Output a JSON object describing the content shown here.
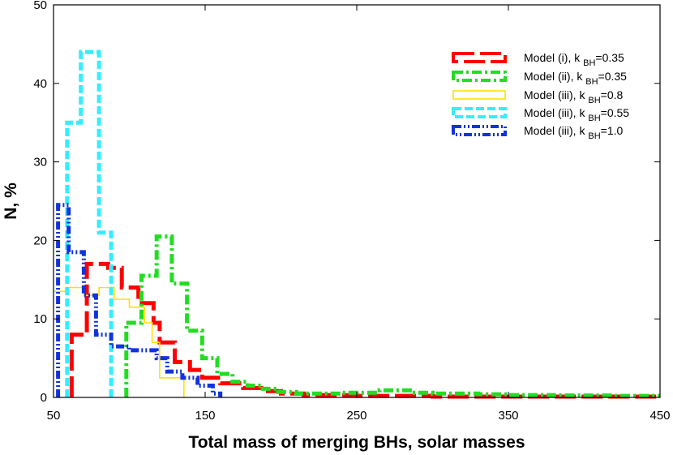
{
  "chart_data": {
    "type": "histogram-step",
    "xlabel": "Total mass of merging BHs, solar masses",
    "ylabel": "N, %",
    "xlim": [
      50,
      450
    ],
    "ylim": [
      0,
      50
    ],
    "xticks": [
      50,
      150,
      250,
      350,
      450
    ],
    "yticks": [
      0,
      10,
      20,
      30,
      40,
      50
    ],
    "grid": false,
    "legend_position": "top-right",
    "series": [
      {
        "name": "Model (i), k BH=0.35",
        "label_main": "Model (i), k ",
        "label_sub": "BH",
        "label_tail": "=0.35",
        "color": "#ff0000",
        "dash": "26,7",
        "width": 5,
        "points": [
          [
            62,
            0
          ],
          [
            62,
            8
          ],
          [
            72,
            8
          ],
          [
            72,
            17
          ],
          [
            86,
            17
          ],
          [
            86,
            16.5
          ],
          [
            95,
            16.5
          ],
          [
            95,
            14
          ],
          [
            106,
            14
          ],
          [
            106,
            12
          ],
          [
            116,
            12
          ],
          [
            116,
            9.5
          ],
          [
            120,
            9.5
          ],
          [
            120,
            7
          ],
          [
            130,
            7
          ],
          [
            130,
            4.5
          ],
          [
            140,
            4.5
          ],
          [
            140,
            3.5
          ],
          [
            148,
            3.5
          ],
          [
            148,
            2.5
          ],
          [
            160,
            2.5
          ],
          [
            160,
            1.8
          ],
          [
            175,
            1.8
          ],
          [
            175,
            1.2
          ],
          [
            190,
            1.2
          ],
          [
            190,
            0.8
          ],
          [
            200,
            0.8
          ],
          [
            200,
            0.5
          ],
          [
            215,
            0.5
          ],
          [
            215,
            0.3
          ],
          [
            250,
            0.3
          ],
          [
            250,
            0.2
          ],
          [
            300,
            0.2
          ],
          [
            300,
            0.1
          ],
          [
            450,
            0.1
          ]
        ]
      },
      {
        "name": "Model (ii), k BH=0.35",
        "label_main": "Model (ii), k ",
        "label_sub": "BH",
        "label_tail": "=0.35",
        "color": "#22dd22",
        "dash": "12,4,3,4",
        "width": 5,
        "points": [
          [
            98,
            0
          ],
          [
            98,
            9.5
          ],
          [
            108,
            9.5
          ],
          [
            108,
            15.5
          ],
          [
            118,
            15.5
          ],
          [
            118,
            20.5
          ],
          [
            128,
            20.5
          ],
          [
            128,
            14.5
          ],
          [
            138,
            14.5
          ],
          [
            138,
            8.5
          ],
          [
            148,
            8.5
          ],
          [
            148,
            5
          ],
          [
            158,
            5
          ],
          [
            158,
            3
          ],
          [
            168,
            3
          ],
          [
            168,
            2
          ],
          [
            178,
            2
          ],
          [
            178,
            1.5
          ],
          [
            188,
            1.5
          ],
          [
            188,
            1.1
          ],
          [
            198,
            1.1
          ],
          [
            198,
            0.7
          ],
          [
            210,
            0.7
          ],
          [
            210,
            0.5
          ],
          [
            240,
            0.5
          ],
          [
            240,
            0.6
          ],
          [
            265,
            0.6
          ],
          [
            265,
            0.9
          ],
          [
            285,
            0.9
          ],
          [
            285,
            0.6
          ],
          [
            300,
            0.6
          ],
          [
            300,
            0.5
          ],
          [
            330,
            0.5
          ],
          [
            330,
            0.4
          ],
          [
            350,
            0.4
          ],
          [
            350,
            0.3
          ],
          [
            380,
            0.3
          ],
          [
            380,
            0.25
          ],
          [
            420,
            0.25
          ],
          [
            420,
            0.2
          ],
          [
            450,
            0.2
          ]
        ]
      },
      {
        "name": "Model (iii), k BH=0.8",
        "label_main": "Model (iii), k ",
        "label_sub": "BH",
        "label_tail": "=0.8",
        "color": "#ffe100",
        "dash": "",
        "width": 1.6,
        "points": [
          [
            50,
            13.5
          ],
          [
            58,
            13.5
          ],
          [
            58,
            14
          ],
          [
            70,
            14
          ],
          [
            70,
            13
          ],
          [
            80,
            13
          ],
          [
            80,
            14
          ],
          [
            90,
            14
          ],
          [
            90,
            12.5
          ],
          [
            100,
            12.5
          ],
          [
            100,
            11.5
          ],
          [
            110,
            11.5
          ],
          [
            110,
            9.5
          ],
          [
            115,
            9.5
          ],
          [
            115,
            7
          ],
          [
            120,
            7
          ],
          [
            120,
            2.5
          ],
          [
            130,
            2.5
          ],
          [
            130,
            2.5
          ],
          [
            136,
            2.5
          ],
          [
            136,
            0
          ]
        ]
      },
      {
        "name": "Model (iii), k BH=0.55",
        "label_main": "Model (iii), k ",
        "label_sub": "BH",
        "label_tail": "=0.55",
        "color": "#33eeff",
        "dash": "10,4",
        "width": 5,
        "points": [
          [
            59,
            0
          ],
          [
            59,
            35
          ],
          [
            68,
            35
          ],
          [
            68,
            44
          ],
          [
            80,
            44
          ],
          [
            80,
            21
          ],
          [
            88,
            21
          ],
          [
            88,
            0
          ]
        ]
      },
      {
        "name": "Model (iii), k BH=1.0",
        "label_main": "Model (iii), k ",
        "label_sub": "BH",
        "label_tail": "=1.0",
        "color": "#1133dd",
        "dash": "10,3,2,3,2,3",
        "width": 5,
        "points": [
          [
            53,
            0
          ],
          [
            53,
            24.5
          ],
          [
            60,
            24.5
          ],
          [
            60,
            18.5
          ],
          [
            70,
            18.5
          ],
          [
            70,
            13
          ],
          [
            78,
            13
          ],
          [
            78,
            8
          ],
          [
            88,
            8
          ],
          [
            88,
            6.5
          ],
          [
            100,
            6.5
          ],
          [
            100,
            6
          ],
          [
            118,
            6
          ],
          [
            118,
            5
          ],
          [
            125,
            5
          ],
          [
            125,
            3.3
          ],
          [
            135,
            3.3
          ],
          [
            135,
            2.5
          ],
          [
            145,
            2.5
          ],
          [
            145,
            1.5
          ],
          [
            155,
            1.5
          ],
          [
            155,
            0.5
          ],
          [
            160,
            0.5
          ],
          [
            160,
            0
          ]
        ]
      }
    ]
  }
}
